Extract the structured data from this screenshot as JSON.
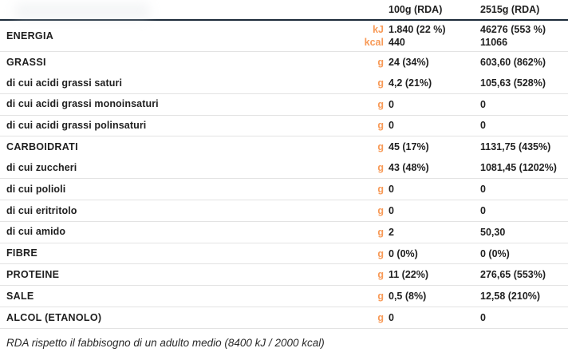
{
  "header": {
    "col1_label": "100g (RDA)",
    "col2_label": "2515g (RDA)"
  },
  "colors": {
    "unit_accent": "#f89a57",
    "header_rule": "#1c2b3a",
    "row_divider": "#e3e3e3",
    "text": "#1f1f1f"
  },
  "rows": [
    {
      "label": "ENERGIA",
      "type": "section energia",
      "units": [
        "kJ",
        "kcal"
      ],
      "col1": [
        "1.840 (22 %)",
        "440"
      ],
      "col2": [
        "46276 (553 %)",
        "11066"
      ],
      "divider": true
    },
    {
      "label": "GRASSI",
      "type": "section",
      "units": [
        "g"
      ],
      "col1": [
        "24 (34%)"
      ],
      "col2": [
        "603,60 (862%)"
      ],
      "divider": false
    },
    {
      "label": "di cui acidi grassi saturi",
      "type": "sub",
      "units": [
        "g"
      ],
      "col1": [
        "4,2 (21%)"
      ],
      "col2": [
        "105,63 (528%)"
      ],
      "divider": true
    },
    {
      "label": "di cui acidi grassi monoinsaturi",
      "type": "sub",
      "units": [
        "g"
      ],
      "col1": [
        "0"
      ],
      "col2": [
        "0"
      ],
      "divider": true
    },
    {
      "label": "di cui acidi grassi polinsaturi",
      "type": "sub",
      "units": [
        "g"
      ],
      "col1": [
        "0"
      ],
      "col2": [
        "0"
      ],
      "divider": true
    },
    {
      "label": "CARBOIDRATI",
      "type": "section",
      "units": [
        "g"
      ],
      "col1": [
        "45 (17%)"
      ],
      "col2": [
        "1131,75 (435%)"
      ],
      "divider": false
    },
    {
      "label": "di cui zuccheri",
      "type": "sub",
      "units": [
        "g"
      ],
      "col1": [
        "43 (48%)"
      ],
      "col2": [
        "1081,45 (1202%)"
      ],
      "divider": true
    },
    {
      "label": "di cui polioli",
      "type": "sub",
      "units": [
        "g"
      ],
      "col1": [
        "0"
      ],
      "col2": [
        "0"
      ],
      "divider": true
    },
    {
      "label": "di cui eritritolo",
      "type": "sub",
      "units": [
        "g"
      ],
      "col1": [
        "0"
      ],
      "col2": [
        "0"
      ],
      "divider": true
    },
    {
      "label": "di cui amido",
      "type": "sub",
      "units": [
        "g"
      ],
      "col1": [
        "2"
      ],
      "col2": [
        "50,30"
      ],
      "divider": true
    },
    {
      "label": "FIBRE",
      "type": "section",
      "units": [
        "g"
      ],
      "col1": [
        "0 (0%)"
      ],
      "col2": [
        "0 (0%)"
      ],
      "divider": true
    },
    {
      "label": "PROTEINE",
      "type": "section",
      "units": [
        "g"
      ],
      "col1": [
        "11 (22%)"
      ],
      "col2": [
        "276,65 (553%)"
      ],
      "divider": true
    },
    {
      "label": "SALE",
      "type": "section",
      "units": [
        "g"
      ],
      "col1": [
        "0,5 (8%)"
      ],
      "col2": [
        "12,58 (210%)"
      ],
      "divider": true
    },
    {
      "label": "ALCOL (ETANOLO)",
      "type": "section",
      "units": [
        "g"
      ],
      "col1": [
        "0"
      ],
      "col2": [
        "0"
      ],
      "divider": true
    }
  ],
  "footer": {
    "note": "RDA rispetto il fabbisogno di un adulto medio (8400 kJ / 2000 kcal)"
  }
}
